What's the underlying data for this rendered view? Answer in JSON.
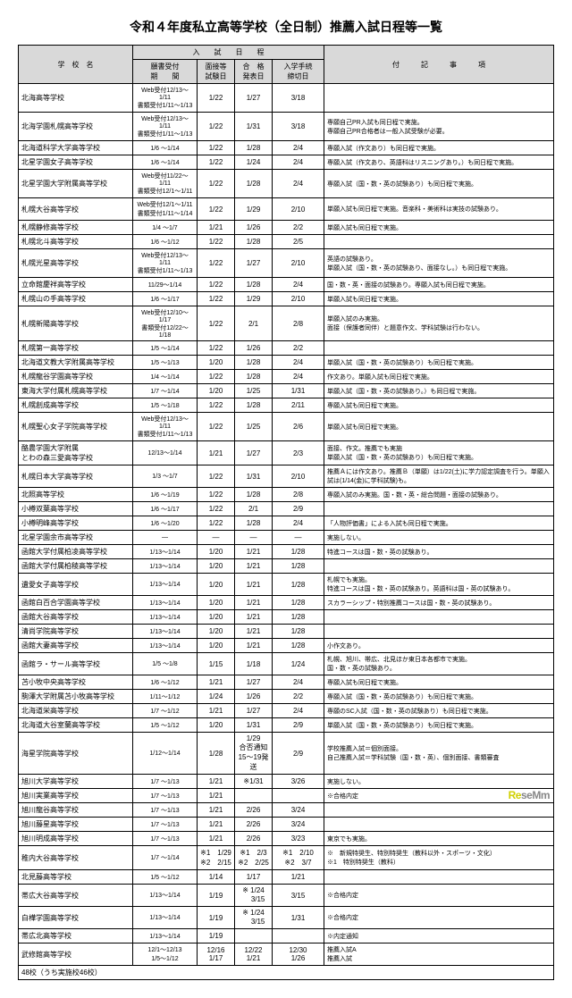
{
  "title": "令和４年度私立高等学校（全日制）推薦入試日程等一覧",
  "headers": {
    "school": "学　校　名",
    "schedule": "入　　試　　日　　程",
    "application": "願書受付\n期　　間",
    "exam": "面接等\n試験日",
    "result": "合　格\n発表日",
    "procedure": "入学手続\n締切日",
    "notes": "付　　　記　　　事　　　項"
  },
  "rows": [
    {
      "name": "北海高等学校",
      "app": "Web受付12/13～1/11\n書類受付1/11～1/13",
      "exam": "1/22",
      "res": "1/27",
      "proc": "3/18",
      "note": ""
    },
    {
      "name": "北海学園札幌高等学校",
      "app": "Web受付12/13～1/11\n書類受付1/11～1/13",
      "exam": "1/22",
      "res": "1/31",
      "proc": "3/18",
      "note": "専願自己PR入試も同日程で実施。\n専願自己PR合格者は一般入試受験が必要。"
    },
    {
      "name": "北海道科学大学高等学校",
      "app": "1/6 ～1/14",
      "exam": "1/22",
      "res": "1/28",
      "proc": "2/4",
      "note": "専願入試（作文あり）も同日程で実施。"
    },
    {
      "name": "北星学園女子高等学校",
      "app": "1/6 ～1/14",
      "exam": "1/22",
      "res": "1/24",
      "proc": "2/4",
      "note": "専願入試（作文あり、英語科はリスニングあり。）も同日程で実施。"
    },
    {
      "name": "北星学園大学附属高等学校",
      "app": "Web受付11/22～1/11\n書類受付12/1～1/11",
      "exam": "1/22",
      "res": "1/28",
      "proc": "2/4",
      "note": "専願入試（国・数・英の試験あり）も同日程で実施。"
    },
    {
      "name": "札幌大谷高等学校",
      "app": "Web受付12/1～1/11\n書類受付1/11～1/14",
      "exam": "1/22",
      "res": "1/29",
      "proc": "2/10",
      "note": "単願入試も同日程で実施。音楽科・美術科は実技の試験あり。"
    },
    {
      "name": "札幌静修高等学校",
      "app": "1/4 ～1/7",
      "exam": "1/21",
      "res": "1/26",
      "proc": "2/2",
      "note": "単願入試も同日程で実施。"
    },
    {
      "name": "札幌北斗高等学校",
      "app": "1/6 ～1/12",
      "exam": "1/22",
      "res": "1/28",
      "proc": "2/5",
      "note": ""
    },
    {
      "name": "札幌光星高等学校",
      "app": "Web受付12/13～1/11\n書類受付1/11～1/13",
      "exam": "1/22",
      "res": "1/27",
      "proc": "2/10",
      "note": "英語の試験あり。\n単願入試（国・数・英の試験あり、面接なし。）も同日程で実施。"
    },
    {
      "name": "立命館慶祥高等学校",
      "app": "11/29～1/14",
      "exam": "1/22",
      "res": "1/28",
      "proc": "2/4",
      "note": "国・数・英・面接の試験あり。専願入試も同日程で実施。"
    },
    {
      "name": "札幌山の手高等学校",
      "app": "1/6 ～1/17",
      "exam": "1/22",
      "res": "1/29",
      "proc": "2/10",
      "note": "単願入試も同日程で実施。"
    },
    {
      "name": "札幌新陽高等学校",
      "app": "Web受付12/10～1/17\n書類受付12/22～1/18",
      "exam": "1/22",
      "res": "2/1",
      "proc": "2/8",
      "note": "単願入試のみ実施。\n面接（保護者同伴）と題意作文、学科試験は行わない。"
    },
    {
      "name": "札幌第一高等学校",
      "app": "1/5 ～1/14",
      "exam": "1/22",
      "res": "1/26",
      "proc": "2/2",
      "note": ""
    },
    {
      "name": "北海道文教大学附属高等学校",
      "app": "1/5 ～1/13",
      "exam": "1/20",
      "res": "1/28",
      "proc": "2/4",
      "note": "単願入試（国・数・英の試験あり）も同日程で実施。"
    },
    {
      "name": "札幌龍谷学園高等学校",
      "app": "1/4 ～1/14",
      "exam": "1/22",
      "res": "1/28",
      "proc": "2/4",
      "note": "作文あり。単願入試も同日程で実施。"
    },
    {
      "name": "東海大学付属札幌高等学校",
      "app": "1/7 ～1/14",
      "exam": "1/20",
      "res": "1/25",
      "proc": "1/31",
      "note": "単願入試（国・数・英の試験あり。）も同日程で実施。"
    },
    {
      "name": "札幌創成高等学校",
      "app": "1/5 ～1/18",
      "exam": "1/22",
      "res": "1/28",
      "proc": "2/11",
      "note": "専願入試も同日程で実施。"
    },
    {
      "name": "札幌聖心女子学院高等学校",
      "app": "Web受付12/13～1/11\n書類受付1/11～1/13",
      "exam": "1/22",
      "res": "1/25",
      "proc": "2/6",
      "note": "単願入試も同日程で実施。"
    },
    {
      "name": "酪農学園大学附属\nとわの森三愛高等学校",
      "app": "12/13～1/14",
      "exam": "1/21",
      "res": "1/27",
      "proc": "2/3",
      "note": "面接、作文。推薦でも実施\n単願入試（国・数・英の試験あり）も同日程で実施。"
    },
    {
      "name": "札幌日本大学高等学校",
      "app": "1/3 ～1/7",
      "exam": "1/22",
      "res": "1/31",
      "proc": "2/10",
      "note": "推薦Ａには作文あり。推薦Ｂ（単願）は1/22(土)に学力認定調査を行う。単願入試は(1/14(金)に学科試験)も。"
    },
    {
      "name": "北照高等学校",
      "app": "1/6 ～1/19",
      "exam": "1/22",
      "res": "1/28",
      "proc": "2/8",
      "note": "専願入試のみ実施。国・数・英・総合問題・面接の試験あり。"
    },
    {
      "name": "小樽双葉高等学校",
      "app": "1/6 ～1/17",
      "exam": "1/22",
      "res": "2/1",
      "proc": "2/9",
      "note": ""
    },
    {
      "name": "小樽明峰高等学校",
      "app": "1/6 ～1/20",
      "exam": "1/22",
      "res": "1/28",
      "proc": "2/4",
      "note": "「人物評価書」による入試も同日程で実施。"
    },
    {
      "name": "北星学園余市高等学校",
      "app": "―",
      "exam": "―",
      "res": "―",
      "proc": "―",
      "note": "実施しない。"
    },
    {
      "name": "函館大学付属柏凌高等学校",
      "app": "1/13～1/14",
      "exam": "1/20",
      "res": "1/21",
      "proc": "1/28",
      "note": "特進コースは国・数・英の試験あり。"
    },
    {
      "name": "函館大学付属柏稜高等学校",
      "app": "1/13～1/14",
      "exam": "1/20",
      "res": "1/21",
      "proc": "1/28",
      "note": ""
    },
    {
      "name": "遺愛女子高等学校",
      "app": "1/13～1/14",
      "exam": "1/20",
      "res": "1/21",
      "proc": "1/28",
      "note": "札幌でも実施。\n特進コースは国・数・英の試験あり。英語科は国・英の試験あり。"
    },
    {
      "name": "函館白百合学園高等学校",
      "app": "1/13～1/14",
      "exam": "1/20",
      "res": "1/21",
      "proc": "1/28",
      "note": "スカラーシップ・特別推薦コースは国・数・英の試験あり。"
    },
    {
      "name": "函館大谷高等学校",
      "app": "1/13～1/14",
      "exam": "1/20",
      "res": "1/21",
      "proc": "1/28",
      "note": ""
    },
    {
      "name": "清尚学院高等学校",
      "app": "1/13～1/14",
      "exam": "1/20",
      "res": "1/21",
      "proc": "1/28",
      "note": ""
    },
    {
      "name": "函館大妻高等学校",
      "app": "1/13～1/14",
      "exam": "1/20",
      "res": "1/21",
      "proc": "1/28",
      "note": "小作文あり。"
    },
    {
      "name": "函館ラ・サール高等学校",
      "app": "1/5 ～1/8",
      "exam": "1/15",
      "res": "1/18",
      "proc": "1/24",
      "note": "札幌、旭川、帯広、北見ほか東日本各都市で実施。\n国・数・英の試験あり。"
    },
    {
      "name": "苫小牧中央高等学校",
      "app": "1/6 ～1/12",
      "exam": "1/21",
      "res": "1/27",
      "proc": "2/4",
      "note": "専願入試も同日程で実施。"
    },
    {
      "name": "駒澤大学附属苫小牧高等学校",
      "app": "1/11～1/12",
      "exam": "1/24",
      "res": "1/26",
      "proc": "2/2",
      "note": "専願入試（国・数・英の試験あり）も同日程で実施。"
    },
    {
      "name": "北海道栄高等学校",
      "app": "1/7 ～1/12",
      "exam": "1/21",
      "res": "1/27",
      "proc": "2/4",
      "note": "専願のSC入試（国・数・英の試験あり）も同日程で実施。"
    },
    {
      "name": "北海道大谷室蘭高等学校",
      "app": "1/5 ～1/12",
      "exam": "1/20",
      "res": "1/31",
      "proc": "2/9",
      "note": "単願入試（国・数・英の試験あり）も同日程で実施。"
    },
    {
      "name": "海星学院高等学校",
      "app": "1/12～1/14",
      "exam": "1/28",
      "res": "1/29\n合否通知15～19発送",
      "proc": "2/9",
      "note": "学校推薦入試＝個別面接。\n自己推薦入試＝学科試験（国・数・英）、個別面接、書類審査"
    },
    {
      "name": "旭川大学高等学校",
      "app": "1/7 ～1/13",
      "exam": "1/21",
      "res": "※1/31",
      "proc": "3/26",
      "note": "実施しない。"
    },
    {
      "name": "旭川実業高等学校",
      "app": "1/7 ～1/13",
      "exam": "1/21",
      "res": "",
      "proc": "",
      "note": "※合格内定"
    },
    {
      "name": "旭川龍谷高等学校",
      "app": "1/7 ～1/13",
      "exam": "1/21",
      "res": "2/26",
      "proc": "3/24",
      "note": ""
    },
    {
      "name": "旭川藤星高等学校",
      "app": "1/7 ～1/13",
      "exam": "1/21",
      "res": "2/26",
      "proc": "3/24",
      "note": ""
    },
    {
      "name": "旭川明成高等学校",
      "app": "1/7 ～1/13",
      "exam": "1/21",
      "res": "2/26",
      "proc": "3/23",
      "note": "東京でも実施。"
    },
    {
      "name": "稚内大谷高等学校",
      "app": "1/7 ～1/14",
      "exam": "※1　1/29\n※2　2/15",
      "res": "※1　2/3\n※2　2/25",
      "proc": "※1　2/10\n※2　3/7",
      "note": "※　新規特奨生、特別特奨生（教科以外・スポーツ・文化）\n※1　特別特奨生（教科）"
    },
    {
      "name": "北見藤高等学校",
      "app": "1/5 ～1/12",
      "exam": "1/14",
      "res": "1/17",
      "proc": "1/21",
      "note": ""
    },
    {
      "name": "帯広大谷高等学校",
      "app": "1/13～1/14",
      "exam": "1/19",
      "res": "※ 1/24\n　 3/15",
      "proc": "3/15",
      "note": "※合格内定"
    },
    {
      "name": "白樺学園高等学校",
      "app": "1/13～1/14",
      "exam": "1/19",
      "res": "※ 1/24\n　 3/15",
      "proc": "1/31",
      "note": "※合格内定"
    },
    {
      "name": "帯広北高等学校",
      "app": "1/13～1/14",
      "exam": "1/19",
      "res": "",
      "proc": "",
      "note": "※内定通知"
    },
    {
      "name": "武修館高等学校",
      "app": "12/1～12/13\n1/5～1/12",
      "exam": "12/16\n1/17",
      "res": "12/22\n1/21",
      "proc": "12/30\n1/26",
      "note": "推薦入試A\n推薦入試"
    }
  ],
  "footer_note": "48校（うち実施校46校）",
  "logo": {
    "text_re": "Re",
    "text_sem": "seM",
    "text_om": "m"
  }
}
